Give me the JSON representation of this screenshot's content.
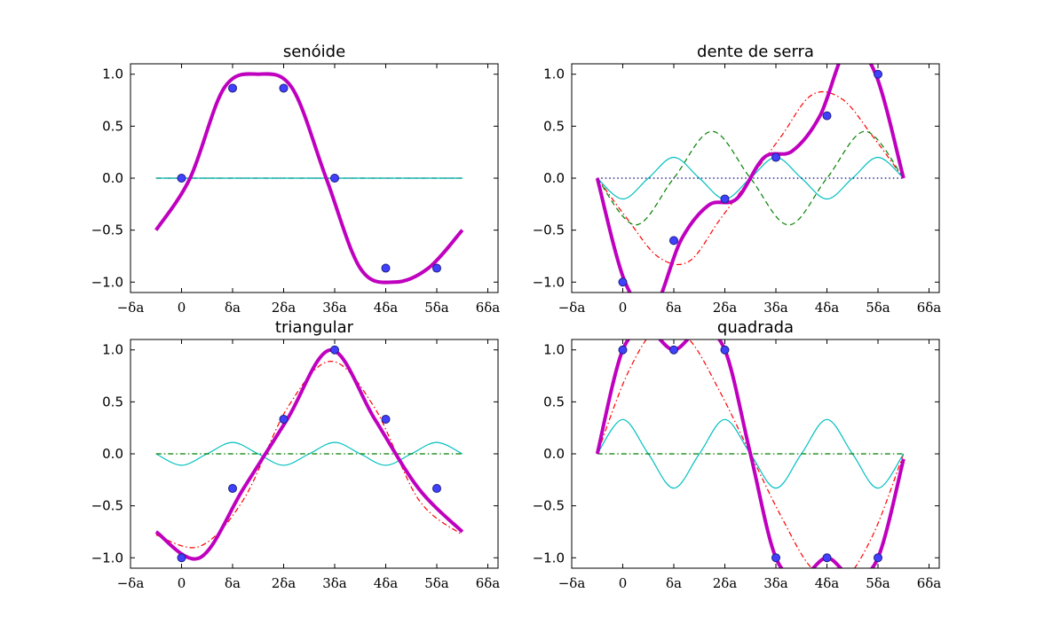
{
  "chart_data": [
    {
      "type": "line",
      "title": "senóide",
      "xlim": [
        -1,
        6.2
      ],
      "ylim": [
        -1.1,
        1.1
      ],
      "xticks": [
        "−δa",
        "0",
        "δa",
        "2δa",
        "3δa",
        "4δa",
        "5δa",
        "6δa"
      ],
      "yticks": [
        "−1.0",
        "−0.5",
        "0.0",
        "0.5",
        "1.0"
      ],
      "sample_x": [
        0,
        1,
        2,
        3,
        4,
        5
      ],
      "sample_y": [
        0.0,
        0.866,
        0.866,
        0.0,
        -0.866,
        -0.866
      ],
      "series": [
        {
          "kind": "signal",
          "color": "#bf00bf",
          "style": "solid",
          "values": [
            -0.5,
            0.0,
            0.866,
            1.0,
            0.866,
            0.0,
            -0.866,
            -1.0,
            -0.866,
            -0.5
          ]
        },
        {
          "kind": "harmonic",
          "color": "#ff0000",
          "style": "dashdot",
          "values": [
            0,
            0,
            0,
            0,
            0,
            0,
            0,
            0,
            0,
            0
          ]
        },
        {
          "kind": "harmonic",
          "color": "#008000",
          "style": "dashed",
          "values": [
            0,
            0,
            0,
            0,
            0,
            0,
            0,
            0,
            0,
            0
          ]
        },
        {
          "kind": "harmonic",
          "color": "#00bfbf",
          "style": "solid",
          "values": [
            0,
            0,
            0,
            0,
            0,
            0,
            0,
            0,
            0,
            0
          ]
        }
      ]
    },
    {
      "type": "line",
      "title": "dente de serra",
      "xlim": [
        -1,
        6.2
      ],
      "ylim": [
        -1.1,
        1.1
      ],
      "xticks": [
        "−δa",
        "0",
        "δa",
        "2δa",
        "3δa",
        "4δa",
        "5δa",
        "6δa"
      ],
      "yticks": [
        "−1.0",
        "−0.5",
        "0.0",
        "0.5",
        "1.0"
      ],
      "sample_x": [
        0,
        1,
        2,
        3,
        4,
        5
      ],
      "sample_y": [
        -1.0,
        -0.6,
        -0.2,
        0.2,
        0.6,
        1.0
      ],
      "series": [
        {
          "kind": "signal",
          "color": "#bf00bf",
          "style": "solid",
          "values": [
            0.0,
            -1.0,
            -1.26,
            -0.6,
            -0.26,
            -0.2,
            0.2,
            0.26,
            0.6,
            1.26,
            1.0,
            0.0
          ]
        },
        {
          "kind": "harmonic",
          "color": "#ff0000",
          "style": "dashdot",
          "values": [
            0.0,
            -0.4,
            -0.76,
            -0.8,
            -0.4,
            0.0,
            0.4,
            0.8,
            0.76,
            0.4,
            0.0
          ]
        },
        {
          "kind": "harmonic",
          "color": "#008000",
          "style": "dashed",
          "values": [
            0.0,
            -0.45,
            0.0,
            0.45,
            0.0,
            -0.45,
            0.0,
            0.45,
            0.0
          ]
        },
        {
          "kind": "harmonic",
          "color": "#00bfbf",
          "style": "solid",
          "values": [
            0.0,
            -0.2,
            0.0,
            0.2,
            0.0,
            -0.2,
            0.0,
            0.2,
            0.0,
            -0.2,
            0.0,
            0.2,
            0.0
          ]
        },
        {
          "kind": "harmonic",
          "color": "#000080",
          "style": "dotted",
          "values": [
            0,
            0,
            0,
            0,
            0,
            0,
            0,
            0,
            0,
            0,
            0
          ]
        }
      ]
    },
    {
      "type": "line",
      "title": "triangular",
      "xlim": [
        -1,
        6.2
      ],
      "ylim": [
        -1.1,
        1.1
      ],
      "xticks": [
        "−δa",
        "0",
        "δa",
        "2δa",
        "3δa",
        "4δa",
        "5δa",
        "6δa"
      ],
      "yticks": [
        "−1.0",
        "−0.5",
        "0.0",
        "0.5",
        "1.0"
      ],
      "sample_x": [
        0,
        1,
        2,
        3,
        4,
        5
      ],
      "sample_y": [
        -1.0,
        -0.333,
        0.333,
        1.0,
        0.333,
        -0.333
      ],
      "series": [
        {
          "kind": "signal",
          "color": "#bf00bf",
          "style": "solid",
          "values": [
            -0.75,
            -1.0,
            -0.333,
            0.333,
            1.0,
            0.333,
            -0.333,
            -0.75
          ]
        },
        {
          "kind": "harmonic",
          "color": "#ff0000",
          "style": "dashdot",
          "values": [
            -0.78,
            -0.89,
            -0.44,
            0.44,
            0.89,
            0.44,
            -0.44,
            -0.78
          ]
        },
        {
          "kind": "harmonic",
          "color": "#00bfbf",
          "style": "solid",
          "values": [
            0.0,
            -0.11,
            0.0,
            0.11,
            0.0,
            -0.11,
            0.0,
            0.11,
            0.0,
            -0.11,
            0.0,
            0.11,
            0.0
          ]
        },
        {
          "kind": "harmonic",
          "color": "#008000",
          "style": "dashdot",
          "values": [
            0,
            0,
            0,
            0,
            0,
            0,
            0,
            0,
            0,
            0,
            0
          ]
        }
      ]
    },
    {
      "type": "line",
      "title": "quadrada",
      "xlim": [
        -1,
        6.2
      ],
      "ylim": [
        -1.1,
        1.1
      ],
      "xticks": [
        "−δa",
        "0",
        "δa",
        "2δa",
        "3δa",
        "4δa",
        "5δa",
        "6δa"
      ],
      "yticks": [
        "−1.0",
        "−0.5",
        "0.0",
        "0.5",
        "1.0"
      ],
      "sample_x": [
        0,
        1,
        2,
        3,
        4,
        5
      ],
      "sample_y": [
        1.0,
        1.0,
        1.0,
        -1.0,
        -1.0,
        -1.0
      ],
      "series": [
        {
          "kind": "signal",
          "color": "#bf00bf",
          "style": "solid",
          "values": [
            0.0,
            1.0,
            1.18,
            1.0,
            1.18,
            1.0,
            0.0,
            -1.0,
            -1.18,
            -1.0,
            -1.18,
            -1.0,
            -0.05
          ]
        },
        {
          "kind": "harmonic",
          "color": "#ff0000",
          "style": "dashdot",
          "values": [
            0.0,
            0.78,
            1.22,
            1.1,
            0.6,
            0.0,
            -0.6,
            -1.1,
            -1.22,
            -0.78,
            0.0
          ]
        },
        {
          "kind": "harmonic",
          "color": "#00bfbf",
          "style": "solid",
          "values": [
            0.0,
            0.33,
            0.0,
            -0.33,
            0.0,
            0.33,
            0.0,
            -0.33,
            0.0,
            0.33,
            0.0,
            -0.33,
            0.0
          ]
        },
        {
          "kind": "harmonic",
          "color": "#008000",
          "style": "dashdot",
          "values": [
            0,
            0,
            0,
            0,
            0,
            0,
            0,
            0,
            0,
            0,
            0
          ]
        }
      ]
    }
  ]
}
